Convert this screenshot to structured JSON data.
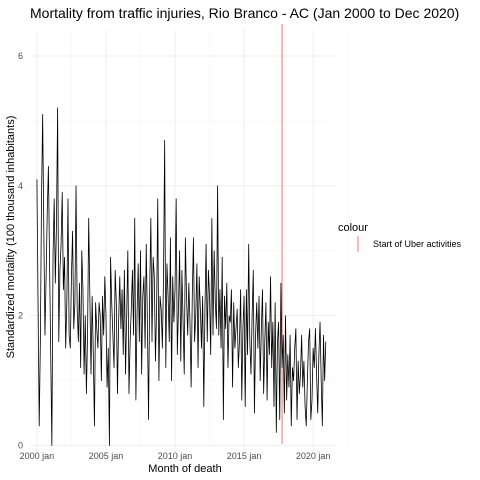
{
  "chart_data": {
    "type": "line",
    "title": "Mortality from traffic injuries, Rio Branco - AC (Jan 2000 to Dec 2020)",
    "xlabel": "Month of death",
    "ylabel": "Standardized  mortality (100 thousand inhabitants)",
    "x_ticks": [
      "2000 jan",
      "2005 jan",
      "2010 jan",
      "2015 jan",
      "2020 jan"
    ],
    "y_ticks": [
      "0",
      "2",
      "4",
      "6"
    ],
    "xlim": [
      "1999-07",
      "2021-08"
    ],
    "ylim": [
      -0.1,
      6.4
    ],
    "grid": true,
    "legend": {
      "title": "colour",
      "placement": "right",
      "entries": [
        {
          "label": "Start of Uber activities",
          "color": "#e8747c"
        }
      ]
    },
    "annotations": [
      {
        "type": "vline",
        "x": "2017-10",
        "label": "Start of Uber activities",
        "color": "#e8747c"
      }
    ],
    "series": [
      {
        "color": "#000000",
        "start": "2000-01",
        "frequency": "monthly",
        "values": [
          4.1,
          2.2,
          0.3,
          1.6,
          3.8,
          5.1,
          3.3,
          1.7,
          2.6,
          3.6,
          4.3,
          2.8,
          1.4,
          0.0,
          2.9,
          3.8,
          2.5,
          3.4,
          5.2,
          1.6,
          2.7,
          3.1,
          3.9,
          2.4,
          2.9,
          1.5,
          2.2,
          3.8,
          1.7,
          1.5,
          2.6,
          3.3,
          1.8,
          2.2,
          4.0,
          2.1,
          1.6,
          2.5,
          1.2,
          3.0,
          2.4,
          1.1,
          2.0,
          0.8,
          1.7,
          3.5,
          2.3,
          1.1,
          2.3,
          1.4,
          0.3,
          2.2,
          1.8,
          1.5,
          2.2,
          2.0,
          1.0,
          2.3,
          1.7,
          2.6,
          2.0,
          0.9,
          1.5,
          0.0,
          2.9,
          2.2,
          1.7,
          1.2,
          2.7,
          2.2,
          0.8,
          1.9,
          2.6,
          1.8,
          2.4,
          1.4,
          2.7,
          1.1,
          2.0,
          3.0,
          0.8,
          1.6,
          2.1,
          2.7,
          1.7,
          3.5,
          0.7,
          2.0,
          2.8,
          1.6,
          3.0,
          1.1,
          2.3,
          2.6,
          1.5,
          3.1,
          1.9,
          0.4,
          2.4,
          3.5,
          1.6,
          2.9,
          2.6,
          1.3,
          2.1,
          3.8,
          1.0,
          2.3,
          2.1,
          1.5,
          2.6,
          4.7,
          1.2,
          2.8,
          2.3,
          1.6,
          3.2,
          1.0,
          2.6,
          1.9,
          2.4,
          3.8,
          1.4,
          2.1,
          3.0,
          1.3,
          2.7,
          1.9,
          1.1,
          3.2,
          2.3,
          1.7,
          2.5,
          1.9,
          0.9,
          2.3,
          3.2,
          1.6,
          2.0,
          2.8,
          1.2,
          2.6,
          2.1,
          1.5,
          2.3,
          0.6,
          2.1,
          3.1,
          1.6,
          2.7,
          2.3,
          1.4,
          3.5,
          1.7,
          3.0,
          2.2,
          1.8,
          4.0,
          1.7,
          2.4,
          1.5,
          2.9,
          0.4,
          2.3,
          1.8,
          2.5,
          1.2,
          2.0,
          1.9,
          2.4,
          0.9,
          2.2,
          1.5,
          1.8,
          2.1,
          1.2,
          1.6,
          2.4,
          0.7,
          1.8,
          2.3,
          0.6,
          2.4,
          1.4,
          3.1,
          1.6,
          1.1,
          2.0,
          2.7,
          0.5,
          1.7,
          2.2,
          1.5,
          2.3,
          1.0,
          1.8,
          2.4,
          0.8,
          1.6,
          2.2,
          0.7,
          1.9,
          1.4,
          2.6,
          1.2,
          1.9,
          0.6,
          2.2,
          0.2,
          1.6,
          1.9,
          0.4,
          2.5,
          1.2,
          1.7,
          0.5,
          2.0,
          0.7,
          1.4,
          0.9,
          1.7,
          0.3,
          1.2,
          1.0,
          1.5,
          1.8,
          0.4,
          1.3,
          0.8,
          1.1,
          1.7,
          0.9,
          1.3,
          0.6,
          0.3,
          1.0,
          1.6,
          1.8,
          0.4,
          0.7,
          1.5,
          1.2,
          1.8,
          1.1,
          0.5,
          1.4,
          1.9,
          1.0,
          0.3,
          1.7,
          1.0,
          1.6
        ]
      }
    ]
  }
}
